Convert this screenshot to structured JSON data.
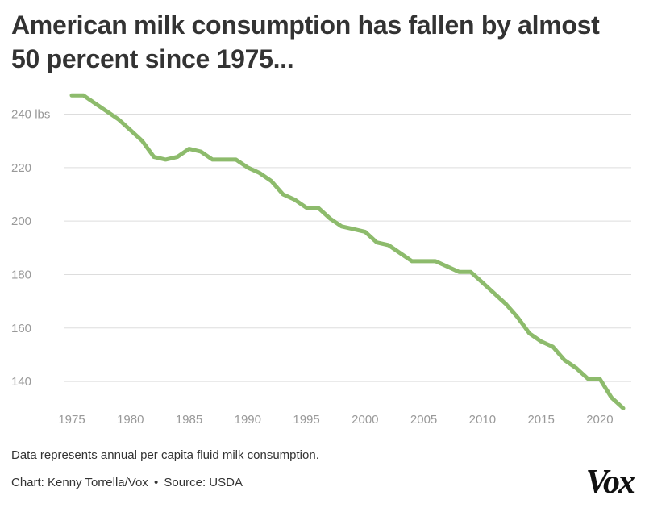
{
  "title": "American milk consumption has fallen by almost 50 percent since 1975...",
  "note": "Data represents annual per capita fluid milk consumption.",
  "credit": {
    "chart": "Chart: Kenny Torrella/Vox",
    "separator": "•",
    "source": "Source: USDA"
  },
  "logo": "Vox",
  "colors": {
    "line": "#8dbb6c",
    "grid": "#dddddd",
    "tick": "#999999",
    "title": "#333333"
  },
  "chart_data": {
    "type": "line",
    "title": "American milk consumption has fallen by almost 50 percent since 1975...",
    "xlabel": "",
    "ylabel": "lbs",
    "xlim": [
      1975,
      2022
    ],
    "ylim": [
      130,
      250
    ],
    "x_ticks": [
      1975,
      1980,
      1985,
      1990,
      1995,
      2000,
      2005,
      2010,
      2015,
      2020
    ],
    "x_tick_labels": [
      "1975",
      "1980",
      "1985",
      "1990",
      "1995",
      "2000",
      "2005",
      "2010",
      "2015",
      "2020"
    ],
    "y_ticks": [
      140,
      160,
      180,
      200,
      220,
      240
    ],
    "y_tick_labels": [
      "140",
      "160",
      "180",
      "200",
      "220",
      "240 lbs"
    ],
    "grid": true,
    "series": [
      {
        "name": "Per capita fluid milk consumption",
        "x": [
          1975,
          1976,
          1977,
          1978,
          1979,
          1980,
          1981,
          1982,
          1983,
          1984,
          1985,
          1986,
          1987,
          1988,
          1989,
          1990,
          1991,
          1992,
          1993,
          1994,
          1995,
          1996,
          1997,
          1998,
          1999,
          2000,
          2001,
          2002,
          2003,
          2004,
          2005,
          2006,
          2007,
          2008,
          2009,
          2010,
          2011,
          2012,
          2013,
          2014,
          2015,
          2016,
          2017,
          2018,
          2019,
          2020,
          2021,
          2022
        ],
        "values": [
          247,
          247,
          244,
          241,
          238,
          234,
          230,
          224,
          223,
          224,
          227,
          226,
          223,
          223,
          223,
          220,
          218,
          215,
          210,
          208,
          205,
          205,
          201,
          198,
          197,
          196,
          192,
          191,
          188,
          185,
          185,
          185,
          183,
          181,
          181,
          177,
          173,
          169,
          164,
          158,
          155,
          153,
          148,
          145,
          141,
          141,
          134,
          130
        ]
      }
    ]
  }
}
